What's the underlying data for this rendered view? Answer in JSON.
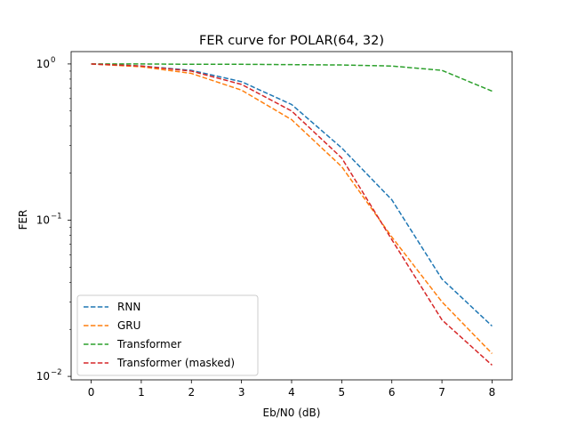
{
  "chart_data": {
    "type": "line",
    "title": "FER curve for POLAR(64, 32)",
    "xlabel": "Eb/N0 (dB)",
    "ylabel": "FER",
    "x": [
      0,
      1,
      2,
      3,
      4,
      5,
      6,
      7,
      8
    ],
    "xlim": [
      -0.4,
      8.4
    ],
    "ylim": [
      0.0095,
      1.2
    ],
    "yscale": "log",
    "x_ticks": [
      "0",
      "1",
      "2",
      "3",
      "4",
      "5",
      "6",
      "7",
      "8"
    ],
    "y_ticks": [
      {
        "value": 1,
        "base": "10",
        "exp": "0"
      },
      {
        "value": 0.1,
        "base": "10",
        "exp": "−1"
      },
      {
        "value": 0.01,
        "base": "10",
        "exp": "−2"
      }
    ],
    "grid": false,
    "legend_position": "lower-left",
    "series": [
      {
        "name": "RNN",
        "color": "#1f77b4",
        "values": [
          1.0,
          0.97,
          0.91,
          0.77,
          0.55,
          0.29,
          0.135,
          0.042,
          0.021
        ]
      },
      {
        "name": "GRU",
        "color": "#ff7f0e",
        "values": [
          1.0,
          0.96,
          0.87,
          0.68,
          0.44,
          0.22,
          0.078,
          0.03,
          0.014
        ]
      },
      {
        "name": "Transformer",
        "color": "#2ca02c",
        "values": [
          1.0,
          1.0,
          0.995,
          0.995,
          0.99,
          0.985,
          0.97,
          0.91,
          0.67
        ]
      },
      {
        "name": "Transformer (masked)",
        "color": "#d62728",
        "values": [
          1.0,
          0.97,
          0.9,
          0.74,
          0.5,
          0.25,
          0.075,
          0.023,
          0.0118
        ]
      }
    ]
  }
}
